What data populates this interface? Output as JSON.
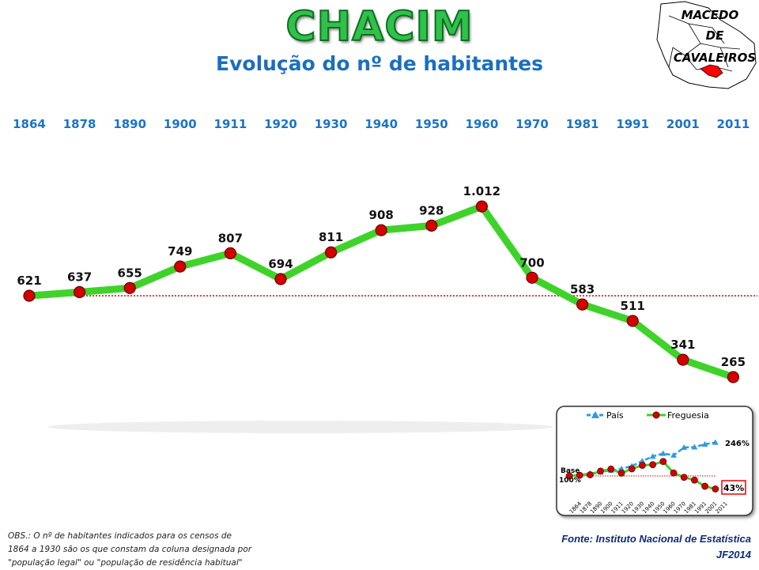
{
  "header": {
    "title": "CHACIM",
    "subtitle": "Evolução do nº de habitantes"
  },
  "logo": {
    "text_lines": [
      "MACEDO",
      "DE",
      "CAVALEIROS"
    ]
  },
  "colors": {
    "line": "#3fd32a",
    "marker": "#d40000",
    "years": "#1a73c8",
    "ref_line": "#e00000",
    "pais": "#2e9be0"
  },
  "chart_data": [
    {
      "type": "line",
      "title": "Evolução do nº de habitantes",
      "categories": [
        "1864",
        "1878",
        "1890",
        "1900",
        "1911",
        "1920",
        "1930",
        "1940",
        "1950",
        "1960",
        "1970",
        "1981",
        "1991",
        "2001",
        "2011"
      ],
      "values": [
        621,
        637,
        655,
        749,
        807,
        694,
        811,
        908,
        928,
        1012,
        700,
        583,
        511,
        341,
        265
      ],
      "labels": [
        "621",
        "637",
        "655",
        "749",
        "807",
        "694",
        "811",
        "908",
        "928",
        "1.012",
        "700",
        "583",
        "511",
        "341",
        "265"
      ],
      "reference_line": 621
    },
    {
      "type": "line",
      "legend": [
        "País",
        "Freguesia"
      ],
      "categories": [
        "1864",
        "1878",
        "1890",
        "1900",
        "1911",
        "1920",
        "1930",
        "1940",
        "1950",
        "1960",
        "1970",
        "1981",
        "1991",
        "2001",
        "2011"
      ],
      "series": [
        {
          "name": "País",
          "values": [
            100,
            104,
            111,
            117,
            124,
            131,
            143,
            165,
            185,
            198,
            190,
            224,
            226,
            238,
            246
          ]
        },
        {
          "name": "Freguesia",
          "values": [
            100,
            103,
            105,
            121,
            130,
            112,
            131,
            146,
            149,
            163,
            113,
            94,
            82,
            55,
            43
          ]
        }
      ],
      "annotations": {
        "base": "Base",
        "base_pct": "100%",
        "pais_end": "246%",
        "freguesia_end": "43%"
      }
    }
  ],
  "footer": {
    "obs": "OBS.: O nº de habitantes indicados para os censos de 1864 a 1930 são os que constam da coluna designada por \"população legal\" ou \"população de residência habitual\"",
    "source": "Fonte: Instituto Nacional de Estatística",
    "author": "JF2014"
  }
}
